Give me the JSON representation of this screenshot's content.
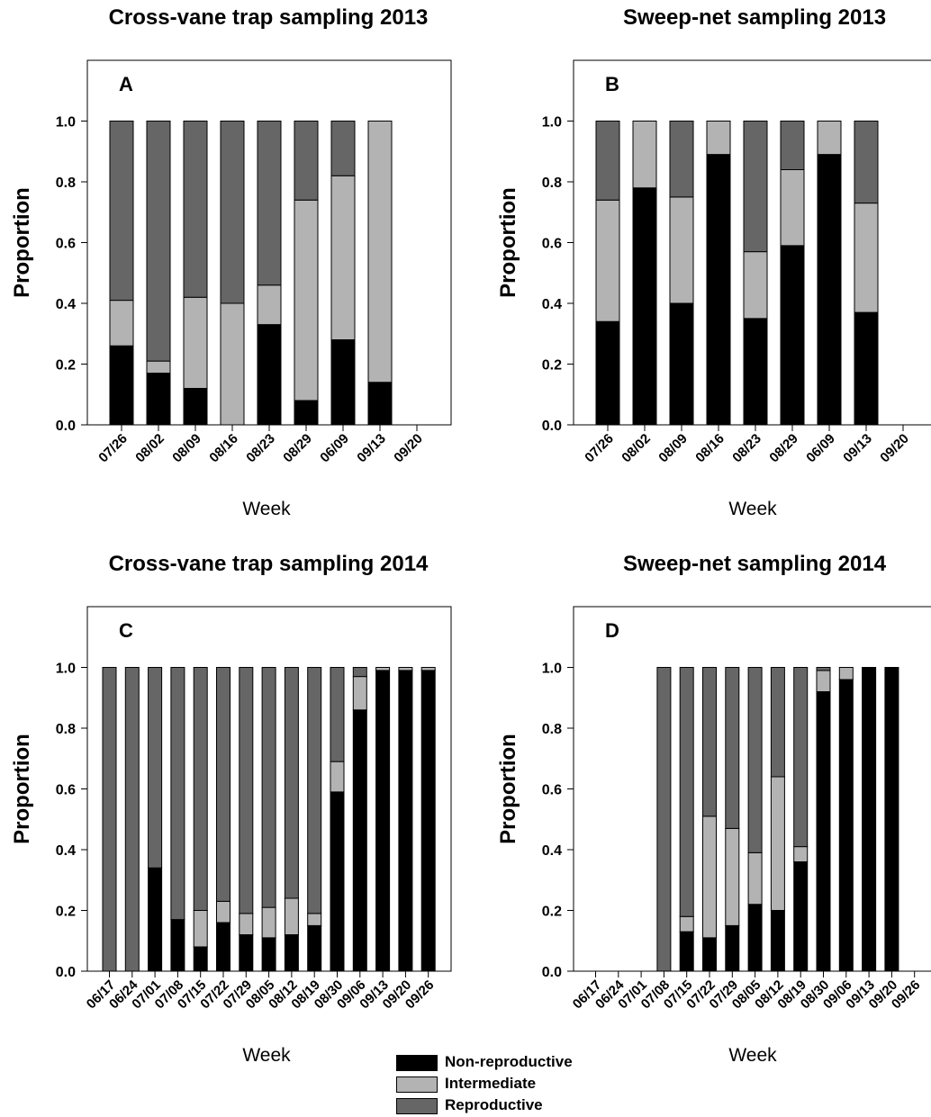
{
  "legend": {
    "items": [
      {
        "label": "Non-reproductive",
        "color": "#000000"
      },
      {
        "label": "Intermediate",
        "color": "#b3b3b3"
      },
      {
        "label": "Reproductive",
        "color": "#666666"
      }
    ]
  },
  "chart_data": [
    {
      "type": "bar",
      "stacked": true,
      "title": "Cross-vane trap sampling 2013",
      "panel_label": "A",
      "xlabel": "Week",
      "ylabel": "Proportion",
      "ylim": [
        0,
        1.2
      ],
      "yticks": [
        "0.0",
        "0.2",
        "0.4",
        "0.6",
        "0.8",
        "1.0"
      ],
      "categories": [
        "07/26",
        "08/02",
        "08/09",
        "08/16",
        "08/23",
        "08/29",
        "06/09",
        "09/13",
        "09/20"
      ],
      "series": [
        {
          "name": "Non-reproductive",
          "values": [
            0.26,
            0.17,
            0.12,
            0.0,
            0.33,
            0.08,
            0.28,
            0.14,
            0
          ]
        },
        {
          "name": "Intermediate",
          "values": [
            0.15,
            0.04,
            0.3,
            0.4,
            0.13,
            0.66,
            0.54,
            0.86,
            0
          ]
        },
        {
          "name": "Reproductive",
          "values": [
            0.59,
            0.79,
            0.58,
            0.6,
            0.54,
            0.26,
            0.18,
            0.0,
            0
          ]
        }
      ]
    },
    {
      "type": "bar",
      "stacked": true,
      "title": "Sweep-net sampling 2013",
      "panel_label": "B",
      "xlabel": "Week",
      "ylabel": "Proportion",
      "ylim": [
        0,
        1.2
      ],
      "yticks": [
        "0.0",
        "0.2",
        "0.4",
        "0.6",
        "0.8",
        "1.0"
      ],
      "categories": [
        "07/26",
        "08/02",
        "08/09",
        "08/16",
        "08/23",
        "08/29",
        "06/09",
        "09/13",
        "09/20"
      ],
      "series": [
        {
          "name": "Non-reproductive",
          "values": [
            0.34,
            0.78,
            0.4,
            0.89,
            0.35,
            0.59,
            0.89,
            0.37,
            0
          ]
        },
        {
          "name": "Intermediate",
          "values": [
            0.4,
            0.22,
            0.35,
            0.11,
            0.22,
            0.25,
            0.11,
            0.36,
            0
          ]
        },
        {
          "name": "Reproductive",
          "values": [
            0.26,
            0.0,
            0.25,
            0.0,
            0.43,
            0.16,
            0.0,
            0.27,
            0
          ]
        }
      ]
    },
    {
      "type": "bar",
      "stacked": true,
      "title": "Cross-vane trap sampling 2014",
      "panel_label": "C",
      "xlabel": "Week",
      "ylabel": "Proportion",
      "ylim": [
        0,
        1.2
      ],
      "yticks": [
        "0.0",
        "0.2",
        "0.4",
        "0.6",
        "0.8",
        "1.0"
      ],
      "categories": [
        "06/17",
        "06/24",
        "07/01",
        "07/08",
        "07/15",
        "07/22",
        "07/29",
        "08/05",
        "08/12",
        "08/19",
        "08/30",
        "09/06",
        "09/13",
        "09/20",
        "09/26"
      ],
      "series": [
        {
          "name": "Non-reproductive",
          "values": [
            0,
            0,
            0.34,
            0.17,
            0.08,
            0.16,
            0.12,
            0.11,
            0.12,
            0.15,
            0.59,
            0.86,
            0.99,
            0.99,
            0.99
          ]
        },
        {
          "name": "Intermediate",
          "values": [
            0,
            0,
            0,
            0,
            0.12,
            0.07,
            0.07,
            0.1,
            0.12,
            0.04,
            0.1,
            0.11,
            0.01,
            0.01,
            0.01
          ]
        },
        {
          "name": "Reproductive",
          "values": [
            1.0,
            1.0,
            0.66,
            0.83,
            0.8,
            0.77,
            0.81,
            0.79,
            0.76,
            0.81,
            0.31,
            0.03,
            0,
            0,
            0
          ]
        }
      ]
    },
    {
      "type": "bar",
      "stacked": true,
      "title": "Sweep-net sampling 2014",
      "panel_label": "D",
      "xlabel": "Week",
      "ylabel": "Proportion",
      "ylim": [
        0,
        1.2
      ],
      "yticks": [
        "0.0",
        "0.2",
        "0.4",
        "0.6",
        "0.8",
        "1.0"
      ],
      "categories": [
        "06/17",
        "06/24",
        "07/01",
        "07/08",
        "07/15",
        "07/22",
        "07/29",
        "08/05",
        "08/12",
        "08/19",
        "08/30",
        "09/06",
        "09/13",
        "09/20",
        "09/26"
      ],
      "series": [
        {
          "name": "Non-reproductive",
          "values": [
            0,
            0,
            0,
            0,
            0.13,
            0.11,
            0.15,
            0.22,
            0.2,
            0.36,
            0.92,
            0.96,
            1.0,
            1.0,
            0
          ]
        },
        {
          "name": "Intermediate",
          "values": [
            0,
            0,
            0,
            0,
            0.05,
            0.4,
            0.32,
            0.17,
            0.44,
            0.05,
            0.07,
            0.04,
            0,
            0,
            0
          ]
        },
        {
          "name": "Reproductive",
          "values": [
            0,
            0,
            0,
            1.0,
            0.82,
            0.49,
            0.53,
            0.61,
            0.36,
            0.59,
            0.01,
            0,
            0,
            0,
            0
          ]
        }
      ]
    }
  ]
}
